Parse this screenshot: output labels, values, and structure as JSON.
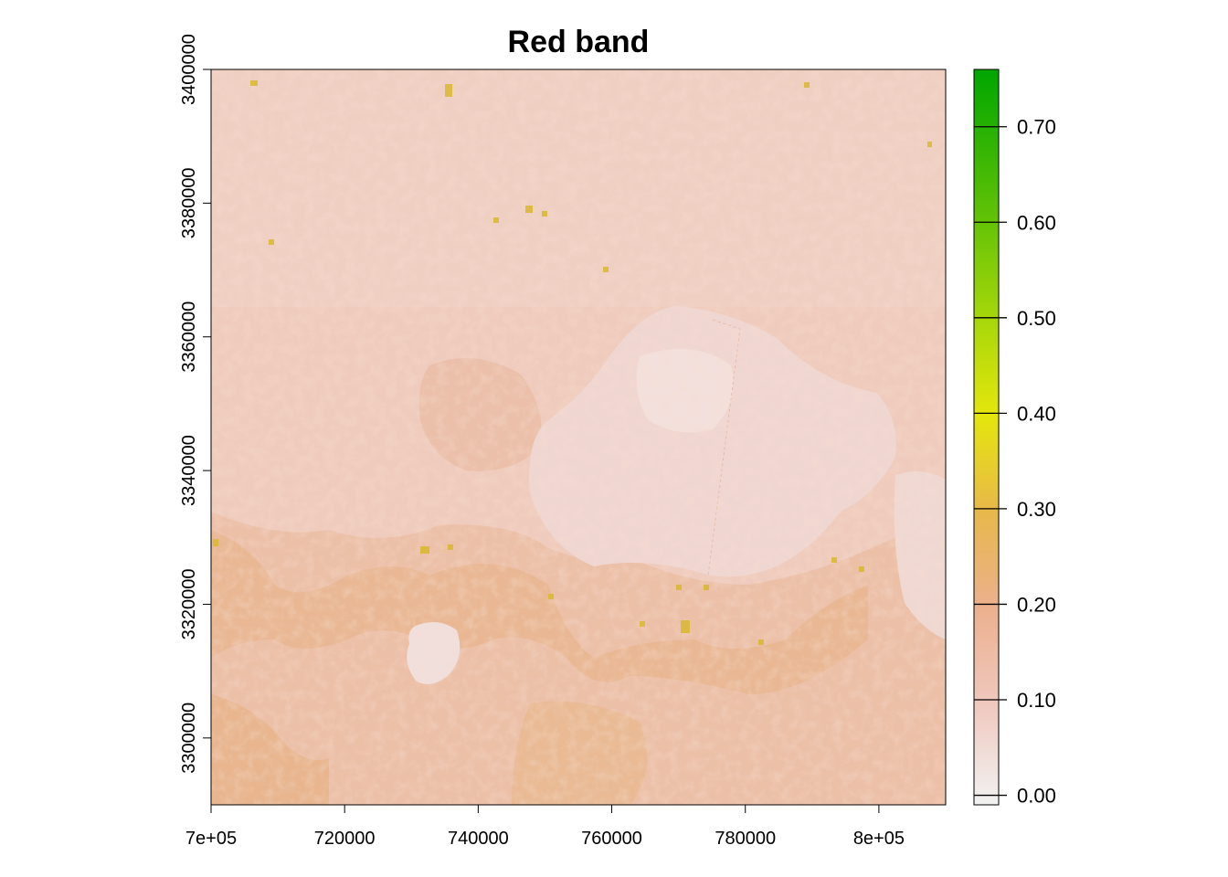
{
  "chart_data": {
    "type": "heatmap",
    "title": "Red band",
    "xlabel": "",
    "ylabel": "",
    "xlim": [
      700000,
      810000
    ],
    "ylim": [
      3290000,
      3400000
    ],
    "x_ticks": [
      {
        "value": 700000,
        "label": "7e+05"
      },
      {
        "value": 720000,
        "label": "720000"
      },
      {
        "value": 740000,
        "label": "740000"
      },
      {
        "value": 760000,
        "label": "760000"
      },
      {
        "value": 780000,
        "label": "780000"
      },
      {
        "value": 800000,
        "label": "8e+05"
      }
    ],
    "y_ticks": [
      {
        "value": 3300000,
        "label": "3300000"
      },
      {
        "value": 3320000,
        "label": "3320000"
      },
      {
        "value": 3340000,
        "label": "3340000"
      },
      {
        "value": 3360000,
        "label": "3360000"
      },
      {
        "value": 3380000,
        "label": "3380000"
      },
      {
        "value": 3400000,
        "label": "3400000"
      }
    ],
    "legend": {
      "placement": "right",
      "range": [
        -0.01,
        0.76
      ],
      "ticks": [
        {
          "value": 0.0,
          "label": "0.00"
        },
        {
          "value": 0.1,
          "label": "0.10"
        },
        {
          "value": 0.2,
          "label": "0.20"
        },
        {
          "value": 0.3,
          "label": "0.30"
        },
        {
          "value": 0.4,
          "label": "0.40"
        },
        {
          "value": 0.5,
          "label": "0.50"
        },
        {
          "value": 0.6,
          "label": "0.60"
        },
        {
          "value": 0.7,
          "label": "0.70"
        }
      ],
      "colors": [
        "#f2f2f2",
        "#efc7bd",
        "#ecb08d",
        "#e8b84a",
        "#e4e60c",
        "#a7d70a",
        "#61c206",
        "#0ba20b",
        "#00a600"
      ]
    },
    "features": {
      "lakes": [
        {
          "name": "",
          "shape": "large-lake",
          "value": 0.06
        },
        {
          "name": "",
          "shape": "small-lake",
          "value": 0.05
        }
      ]
    }
  }
}
